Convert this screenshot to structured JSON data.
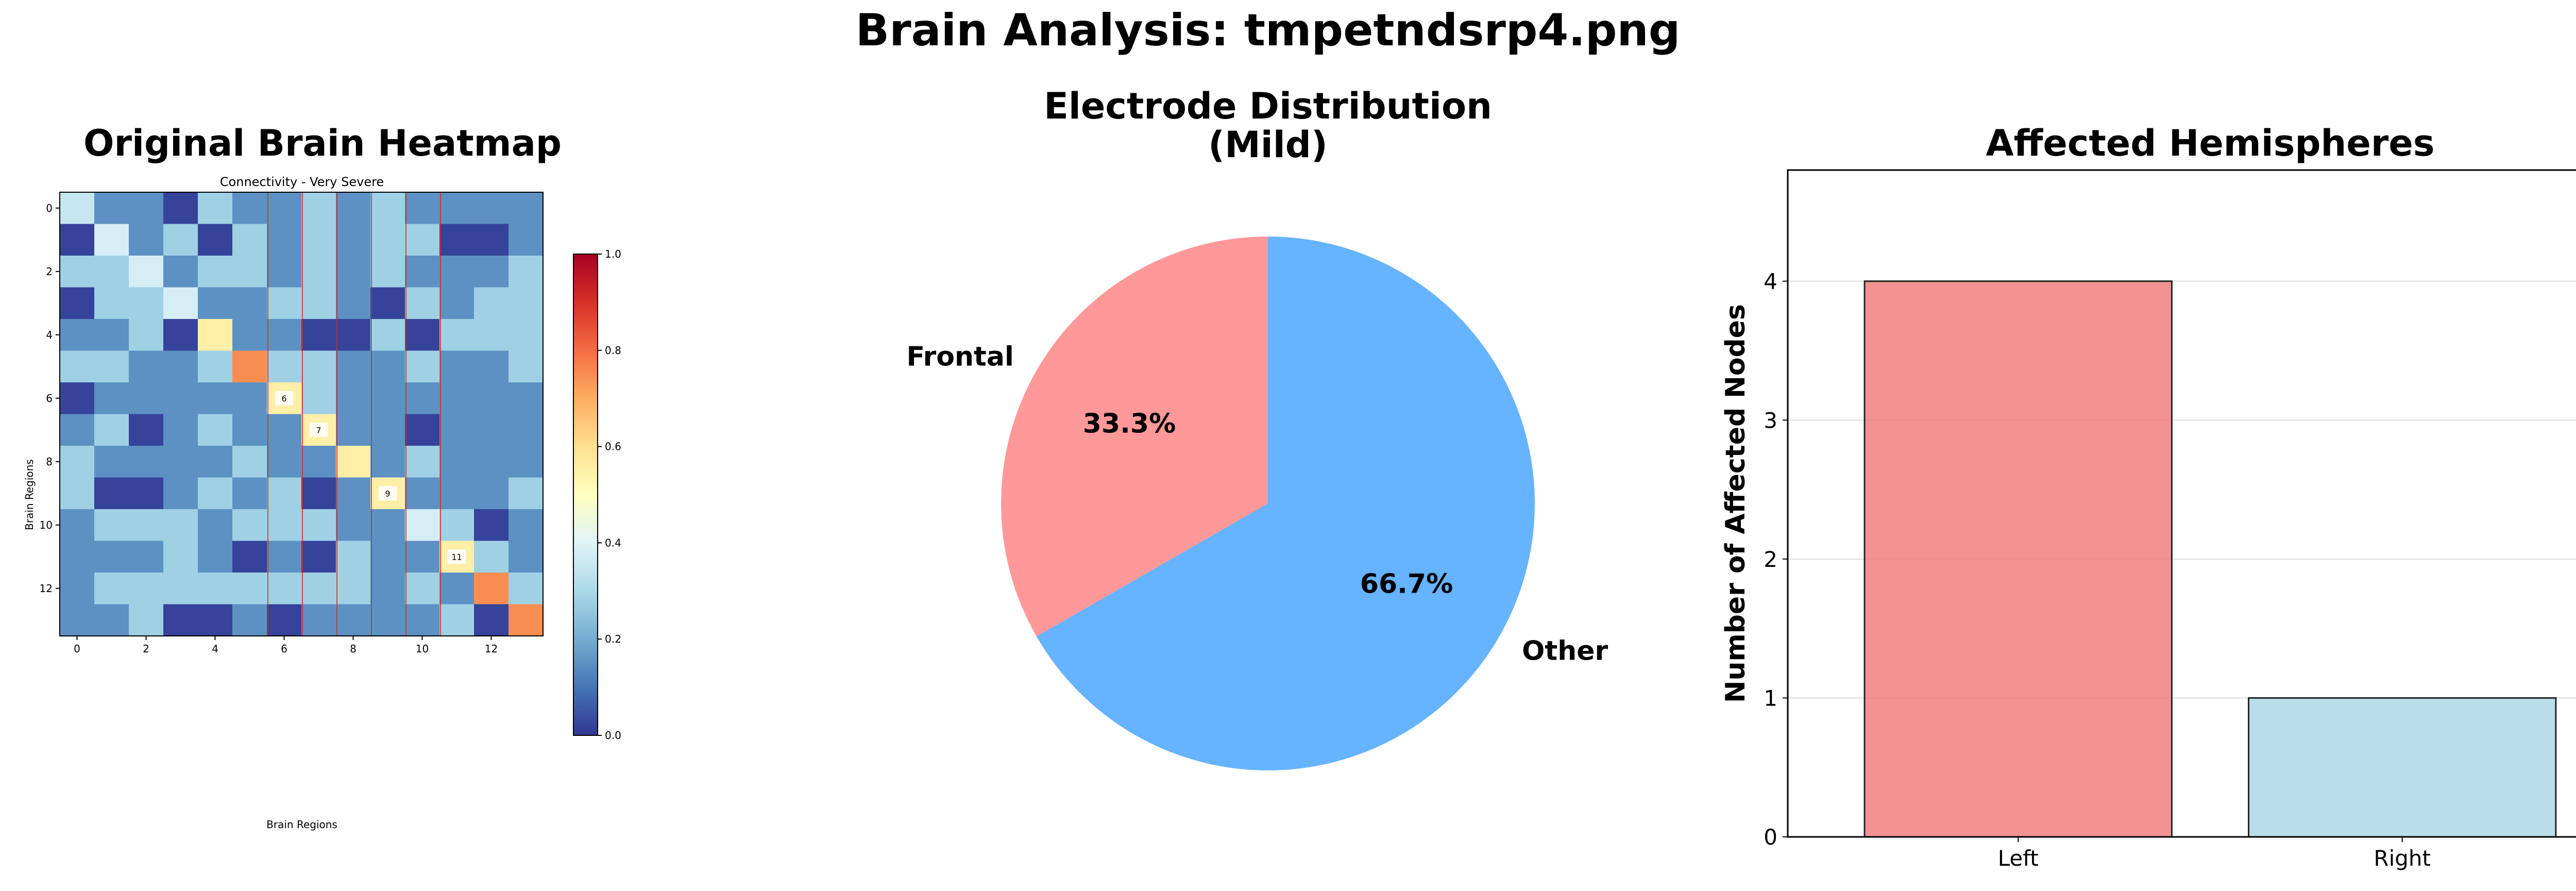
{
  "suptitle": "Brain Analysis: tmpetndsrp4.png",
  "colors": {
    "frontal": "#FF9999",
    "other": "#66B3FF",
    "left_bar": "#F08080",
    "right_bar": "#ADD8E6",
    "grid": "#dddddd",
    "red_lines": "#d62728"
  },
  "chart_data": [
    {
      "type": "heatmap",
      "title": "Original Brain Heatmap",
      "subtitle": "Connectivity - Very Severe",
      "xlabel": "Brain Regions",
      "ylabel": "Brain Regions",
      "x_ticks": [
        0,
        2,
        4,
        6,
        8,
        10,
        12
      ],
      "y_ticks": [
        0,
        2,
        4,
        6,
        8,
        10,
        12
      ],
      "colormap": "RdYlBu_r",
      "colorbar": {
        "range": [
          0,
          1
        ],
        "ticks": [
          "0.0",
          "0.2",
          "0.4",
          "0.6",
          "0.8",
          "1.0"
        ]
      },
      "highlight_columns": [
        6,
        7,
        8,
        9,
        10,
        11
      ],
      "cell_annotations": [
        {
          "row": 6,
          "col": 6,
          "text": "6"
        },
        {
          "row": 7,
          "col": 7,
          "text": "7"
        },
        {
          "row": 9,
          "col": 9,
          "text": "9"
        },
        {
          "row": 11,
          "col": 11,
          "text": "11"
        }
      ],
      "matrix": [
        [
          0.35,
          0.15,
          0.15,
          0.02,
          0.28,
          0.15,
          0.15,
          0.28,
          0.15,
          0.28,
          0.15,
          0.15,
          0.15,
          0.15
        ],
        [
          0.02,
          0.38,
          0.15,
          0.28,
          0.02,
          0.28,
          0.15,
          0.28,
          0.15,
          0.28,
          0.28,
          0.02,
          0.02,
          0.15
        ],
        [
          0.28,
          0.28,
          0.38,
          0.15,
          0.28,
          0.28,
          0.15,
          0.28,
          0.15,
          0.28,
          0.15,
          0.15,
          0.15,
          0.28
        ],
        [
          0.02,
          0.28,
          0.28,
          0.38,
          0.15,
          0.15,
          0.28,
          0.28,
          0.15,
          0.02,
          0.28,
          0.15,
          0.28,
          0.28
        ],
        [
          0.15,
          0.15,
          0.28,
          0.02,
          0.55,
          0.15,
          0.15,
          0.02,
          0.02,
          0.28,
          0.02,
          0.28,
          0.28,
          0.28
        ],
        [
          0.28,
          0.28,
          0.15,
          0.15,
          0.28,
          0.75,
          0.28,
          0.28,
          0.15,
          0.15,
          0.28,
          0.15,
          0.15,
          0.28
        ],
        [
          0.02,
          0.15,
          0.15,
          0.15,
          0.15,
          0.15,
          0.55,
          0.28,
          0.15,
          0.15,
          0.15,
          0.15,
          0.15,
          0.15
        ],
        [
          0.15,
          0.28,
          0.02,
          0.15,
          0.28,
          0.15,
          0.15,
          0.55,
          0.15,
          0.15,
          0.02,
          0.15,
          0.15,
          0.15
        ],
        [
          0.28,
          0.15,
          0.15,
          0.15,
          0.15,
          0.28,
          0.15,
          0.15,
          0.55,
          0.15,
          0.28,
          0.15,
          0.15,
          0.15
        ],
        [
          0.28,
          0.02,
          0.02,
          0.15,
          0.28,
          0.15,
          0.28,
          0.02,
          0.15,
          0.55,
          0.15,
          0.15,
          0.15,
          0.28
        ],
        [
          0.15,
          0.28,
          0.28,
          0.28,
          0.15,
          0.28,
          0.28,
          0.28,
          0.15,
          0.15,
          0.38,
          0.28,
          0.02,
          0.15
        ],
        [
          0.15,
          0.15,
          0.15,
          0.28,
          0.15,
          0.02,
          0.15,
          0.02,
          0.28,
          0.15,
          0.15,
          0.55,
          0.28,
          0.15
        ],
        [
          0.15,
          0.28,
          0.28,
          0.28,
          0.28,
          0.28,
          0.28,
          0.28,
          0.28,
          0.15,
          0.28,
          0.15,
          0.75,
          0.28
        ],
        [
          0.15,
          0.15,
          0.28,
          0.02,
          0.02,
          0.15,
          0.02,
          0.15,
          0.15,
          0.15,
          0.15,
          0.28,
          0.02,
          0.75
        ]
      ]
    },
    {
      "type": "pie",
      "title_lines": [
        "Electrode Distribution",
        "(Mild)"
      ],
      "labels": [
        "Frontal",
        "Other"
      ],
      "values": [
        33.3,
        66.7
      ],
      "pct_labels": [
        "33.3%",
        "66.7%"
      ]
    },
    {
      "type": "bar",
      "title": "Affected Hemispheres",
      "categories": [
        "Left",
        "Right"
      ],
      "values": [
        4,
        1
      ],
      "ylabel": "Number of Affected Nodes",
      "ylim": [
        0,
        4.8
      ],
      "y_ticks": [
        0,
        1,
        2,
        3,
        4
      ],
      "grid": "y"
    }
  ]
}
